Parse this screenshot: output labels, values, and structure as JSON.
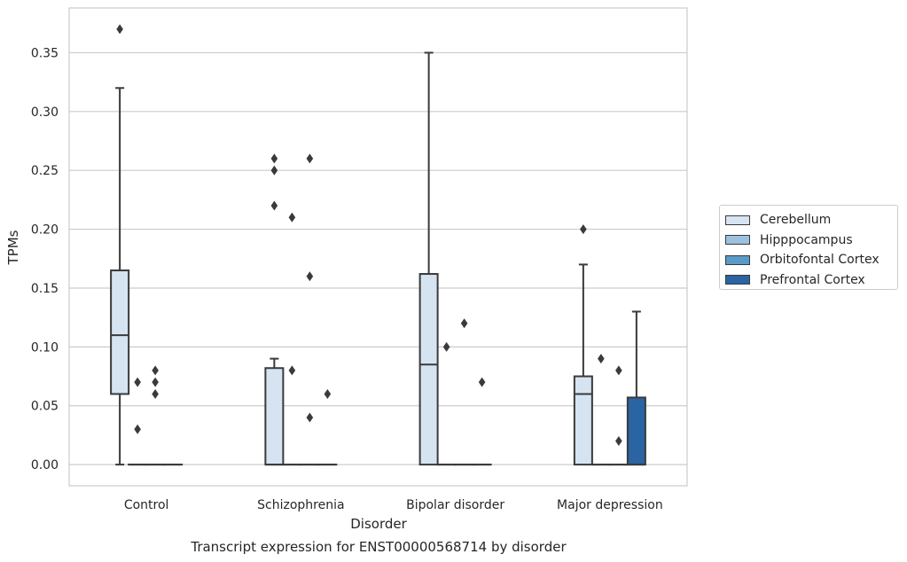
{
  "chart_data": {
    "type": "box",
    "title": "Transcript expression for ENST00000568714 by disorder",
    "xlabel": "Disorder",
    "ylabel": "TPMs",
    "ylim": [
      -0.018,
      0.388
    ],
    "yticks": [
      "0.00",
      "0.05",
      "0.10",
      "0.15",
      "0.20",
      "0.25",
      "0.30",
      "0.35"
    ],
    "grid": "horizontal",
    "legend_position": "right",
    "categories": [
      "Control",
      "Schizophrenia",
      "Bipolar disorder",
      "Major depression"
    ],
    "series": [
      {
        "name": "Cerebellum",
        "color": "#d6e4f2",
        "boxes": [
          {
            "min": 0.0,
            "q1": 0.06,
            "median": 0.11,
            "q3": 0.165,
            "max": 0.32,
            "outliers": [
              0.37
            ]
          },
          {
            "min": 0.0,
            "q1": 0.0,
            "median": 0.0,
            "q3": 0.082,
            "max": 0.09,
            "outliers": [
              0.22,
              0.25,
              0.26
            ]
          },
          {
            "min": 0.0,
            "q1": 0.0,
            "median": 0.085,
            "q3": 0.162,
            "max": 0.35,
            "outliers": []
          },
          {
            "min": 0.0,
            "q1": 0.0,
            "median": 0.06,
            "q3": 0.075,
            "max": 0.17,
            "outliers": [
              0.2
            ]
          }
        ]
      },
      {
        "name": "Hipppocampus",
        "color": "#9cc1de",
        "boxes": [
          {
            "min": 0.0,
            "q1": 0.0,
            "median": 0.0,
            "q3": 0.0,
            "max": 0.0,
            "outliers": [
              0.03,
              0.07
            ]
          },
          {
            "min": 0.0,
            "q1": 0.0,
            "median": 0.0,
            "q3": 0.0,
            "max": 0.0,
            "outliers": [
              0.08,
              0.21
            ]
          },
          {
            "min": 0.0,
            "q1": 0.0,
            "median": 0.0,
            "q3": 0.0,
            "max": 0.0,
            "outliers": [
              0.1
            ]
          },
          {
            "min": 0.0,
            "q1": 0.0,
            "median": 0.0,
            "q3": 0.0,
            "max": 0.0,
            "outliers": [
              0.09
            ]
          }
        ]
      },
      {
        "name": "Orbitofontal Cortex",
        "color": "#5a9ac8",
        "boxes": [
          {
            "min": 0.0,
            "q1": 0.0,
            "median": 0.0,
            "q3": 0.0,
            "max": 0.0,
            "outliers": [
              0.06,
              0.07,
              0.08
            ]
          },
          {
            "min": 0.0,
            "q1": 0.0,
            "median": 0.0,
            "q3": 0.0,
            "max": 0.0,
            "outliers": [
              0.04,
              0.16,
              0.26
            ]
          },
          {
            "min": 0.0,
            "q1": 0.0,
            "median": 0.0,
            "q3": 0.0,
            "max": 0.0,
            "outliers": [
              0.12
            ]
          },
          {
            "min": 0.0,
            "q1": 0.0,
            "median": 0.0,
            "q3": 0.0,
            "max": 0.0,
            "outliers": [
              0.02,
              0.08
            ]
          }
        ]
      },
      {
        "name": "Prefrontal Cortex",
        "color": "#2a64a3",
        "boxes": [
          {
            "min": 0.0,
            "q1": 0.0,
            "median": 0.0,
            "q3": 0.0,
            "max": 0.0,
            "outliers": []
          },
          {
            "min": 0.0,
            "q1": 0.0,
            "median": 0.0,
            "q3": 0.0,
            "max": 0.0,
            "outliers": [
              0.06
            ]
          },
          {
            "min": 0.0,
            "q1": 0.0,
            "median": 0.0,
            "q3": 0.0,
            "max": 0.0,
            "outliers": [
              0.07
            ]
          },
          {
            "min": 0.0,
            "q1": 0.0,
            "median": 0.0,
            "q3": 0.057,
            "max": 0.13,
            "outliers": []
          }
        ]
      }
    ]
  }
}
